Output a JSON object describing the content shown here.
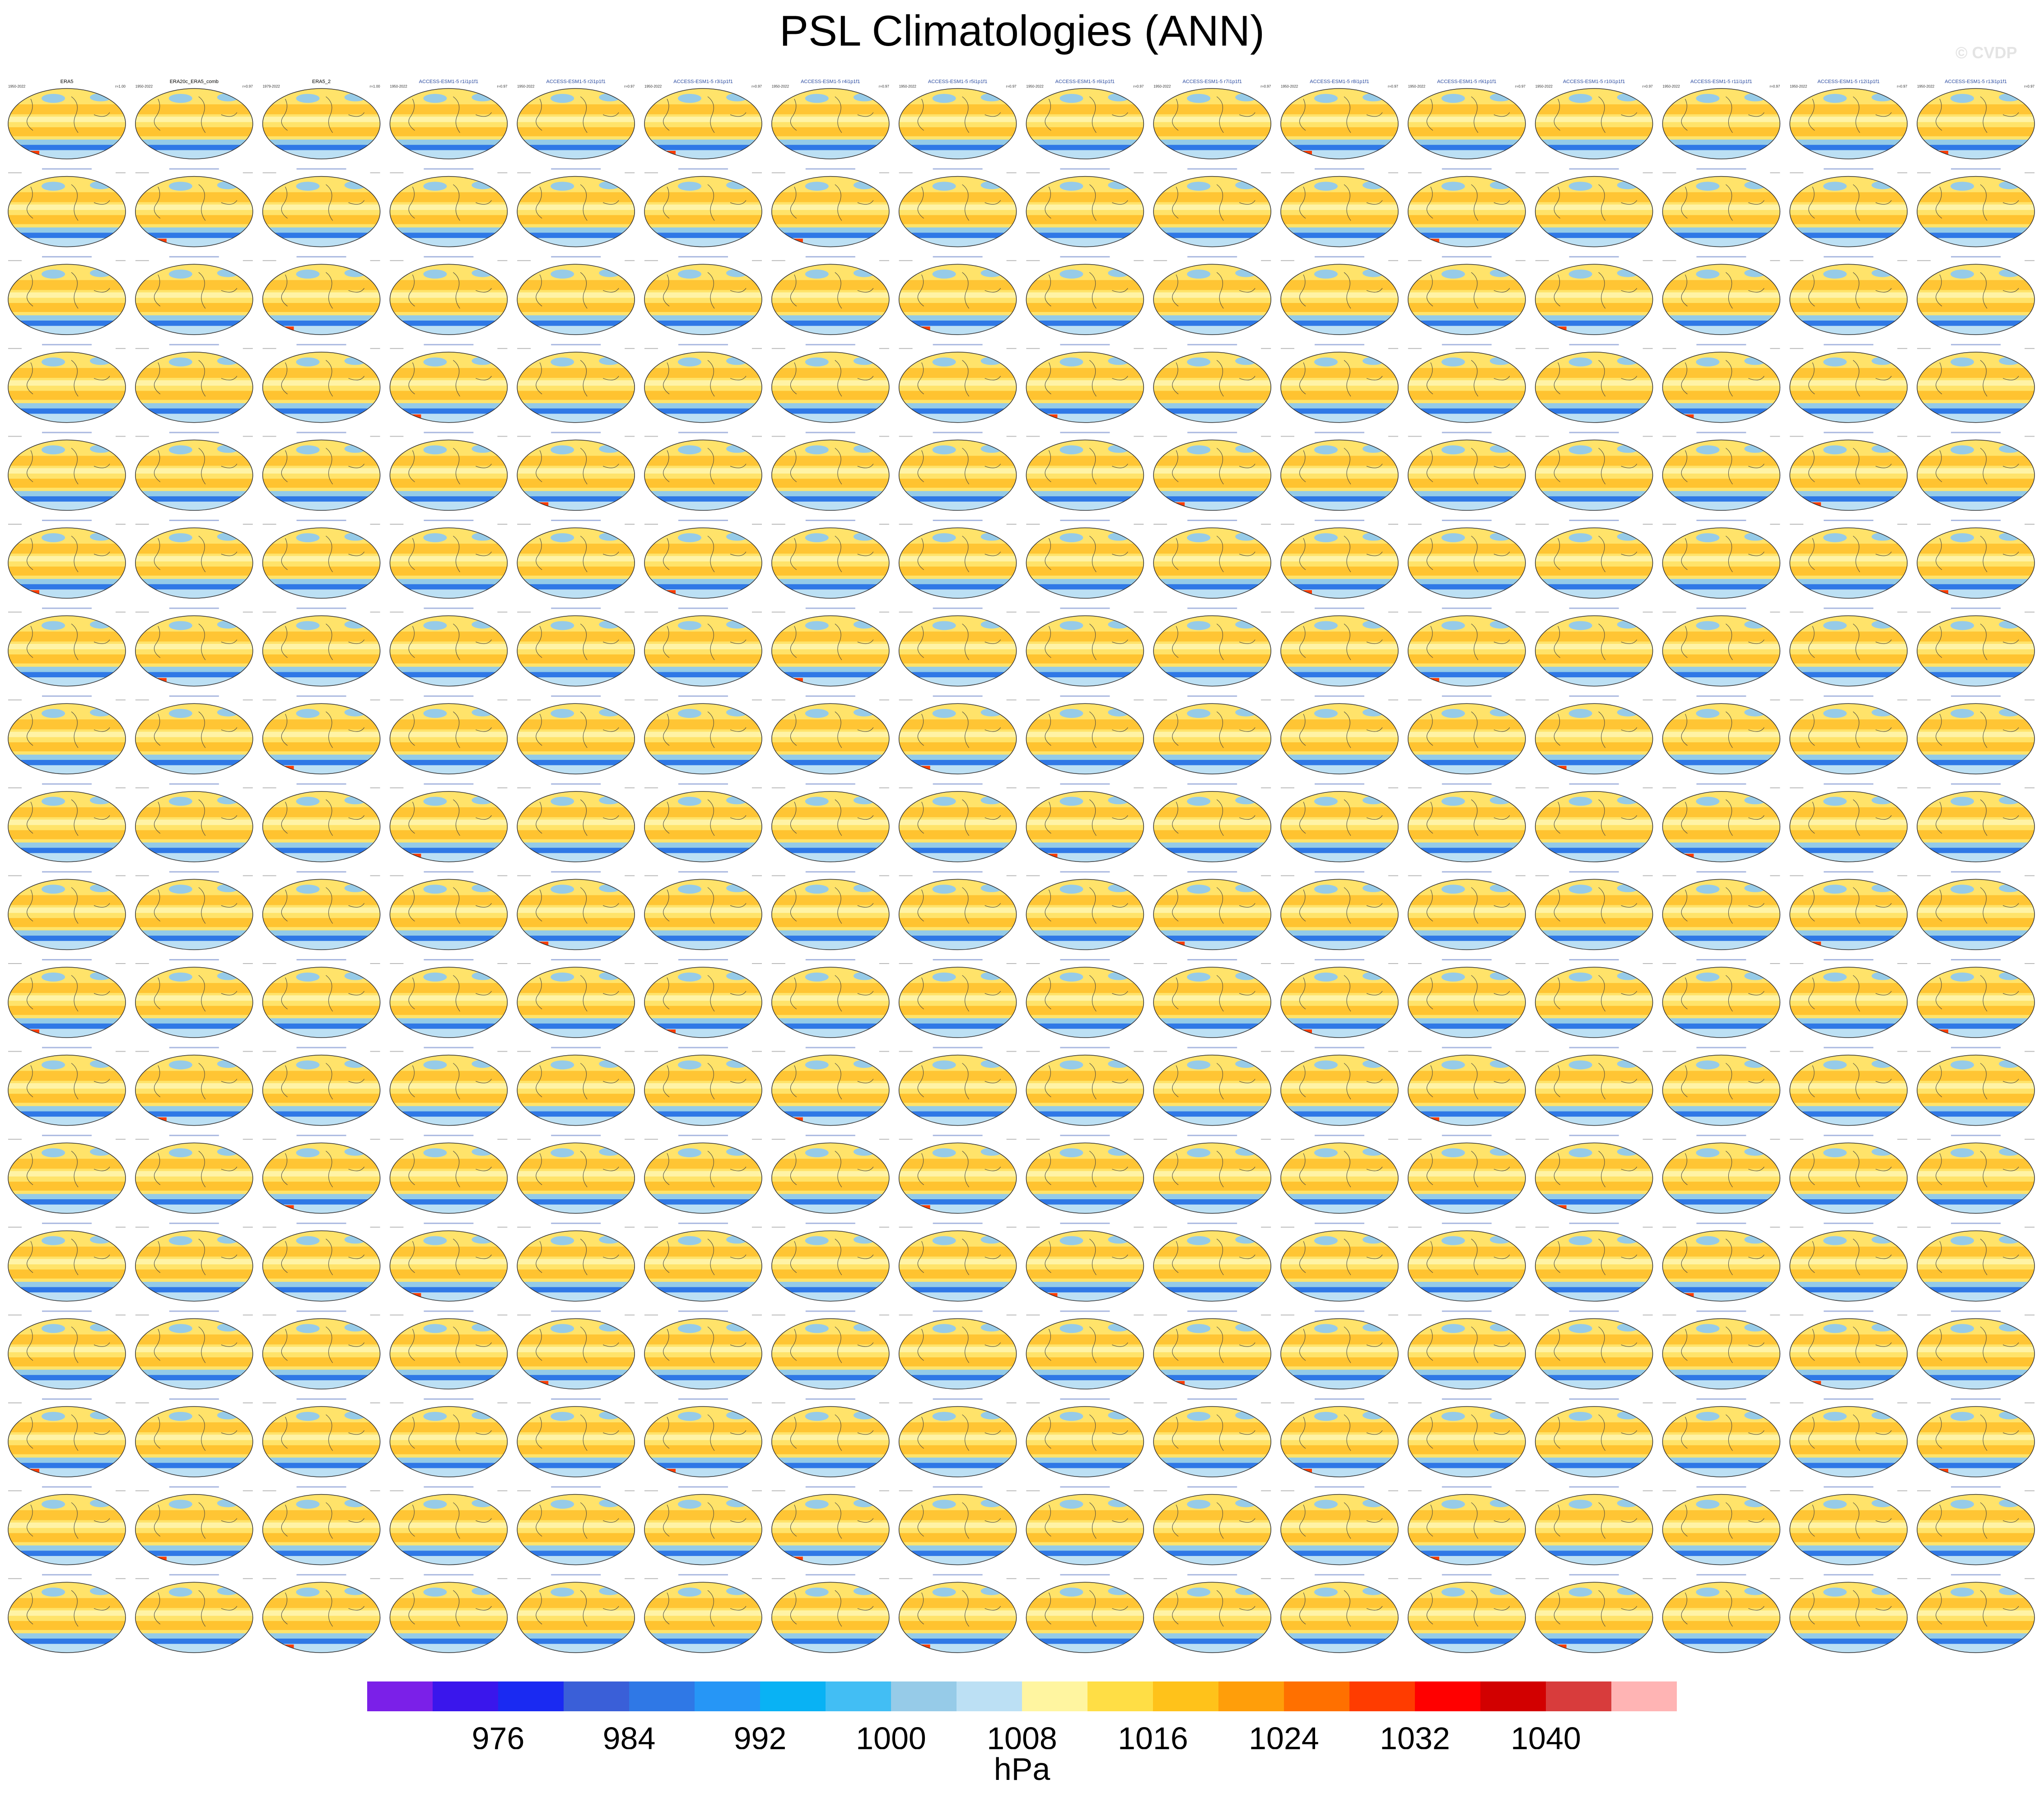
{
  "title": "PSL Climatologies (ANN)",
  "watermark": "© CVDP",
  "chart_data": {
    "type": "heatmap",
    "title": "PSL Climatologies (ANN)",
    "layout": "small-multiples grid of global map panels",
    "grid": {
      "rows": 18,
      "columns": 16
    },
    "panels_row1": [
      {
        "name": "ERA5",
        "period": "1950-2022",
        "pattern_corr": "r=1.00"
      },
      {
        "name": "ERA20c_ERA5_comb",
        "period": "1950-2022",
        "pattern_corr": "r=0.97"
      },
      {
        "name": "ERA5_2",
        "period": "1979-2022",
        "pattern_corr": "r=1.00"
      },
      {
        "name": "ACCESS-ESM1-5 r1i1p1f1",
        "period": "1950-2022",
        "pattern_corr": "r=0.97"
      },
      {
        "name": "ACCESS-ESM1-5 r2i1p1f1",
        "period": "1950-2022",
        "pattern_corr": "r=0.97"
      },
      {
        "name": "ACCESS-ESM1-5 r3i1p1f1",
        "period": "1950-2022",
        "pattern_corr": "r=0.97"
      },
      {
        "name": "ACCESS-ESM1-5 r4i1p1f1",
        "period": "1950-2022",
        "pattern_corr": "r=0.97"
      },
      {
        "name": "ACCESS-ESM1-5 r5i1p1f1",
        "period": "1950-2022",
        "pattern_corr": "r=0.97"
      },
      {
        "name": "ACCESS-ESM1-5 r6i1p1f1",
        "period": "1950-2022",
        "pattern_corr": "r=0.97"
      },
      {
        "name": "ACCESS-ESM1-5 r7i1p1f1",
        "period": "1950-2022",
        "pattern_corr": "r=0.97"
      },
      {
        "name": "ACCESS-ESM1-5 r8i1p1f1",
        "period": "1950-2022",
        "pattern_corr": "r=0.97"
      },
      {
        "name": "ACCESS-ESM1-5 r9i1p1f1",
        "period": "1950-2022",
        "pattern_corr": "r=0.97"
      },
      {
        "name": "ACCESS-ESM1-5 r10i1p1f1",
        "period": "1950-2022",
        "pattern_corr": "r=0.97"
      },
      {
        "name": "ACCESS-ESM1-5 r11i1p1f1",
        "period": "1950-2022",
        "pattern_corr": "r=0.97"
      },
      {
        "name": "ACCESS-ESM1-5 r12i1p1f1",
        "period": "1950-2022",
        "pattern_corr": "r=0.97"
      },
      {
        "name": "ACCESS-ESM1-5 r13i1p1f1",
        "period": "1950-2022",
        "pattern_corr": "r=0.97"
      }
    ],
    "colorbar": {
      "unit": "hPa",
      "tick_labels": [
        "976",
        "984",
        "992",
        "1000",
        "1008",
        "1016",
        "1024",
        "1032",
        "1040"
      ],
      "colors": [
        "#7b20e8",
        "#3a16ec",
        "#1a2af2",
        "#3a5fd8",
        "#2f78e6",
        "#2696f6",
        "#09b2f4",
        "#42bef4",
        "#96cbe8",
        "#bce0f4",
        "#fff5a0",
        "#ffde45",
        "#ffc21a",
        "#ff9e0a",
        "#ff7000",
        "#ff3c00",
        "#ff0000",
        "#d20000",
        "#d83c3c",
        "#ffb4b4"
      ]
    }
  }
}
